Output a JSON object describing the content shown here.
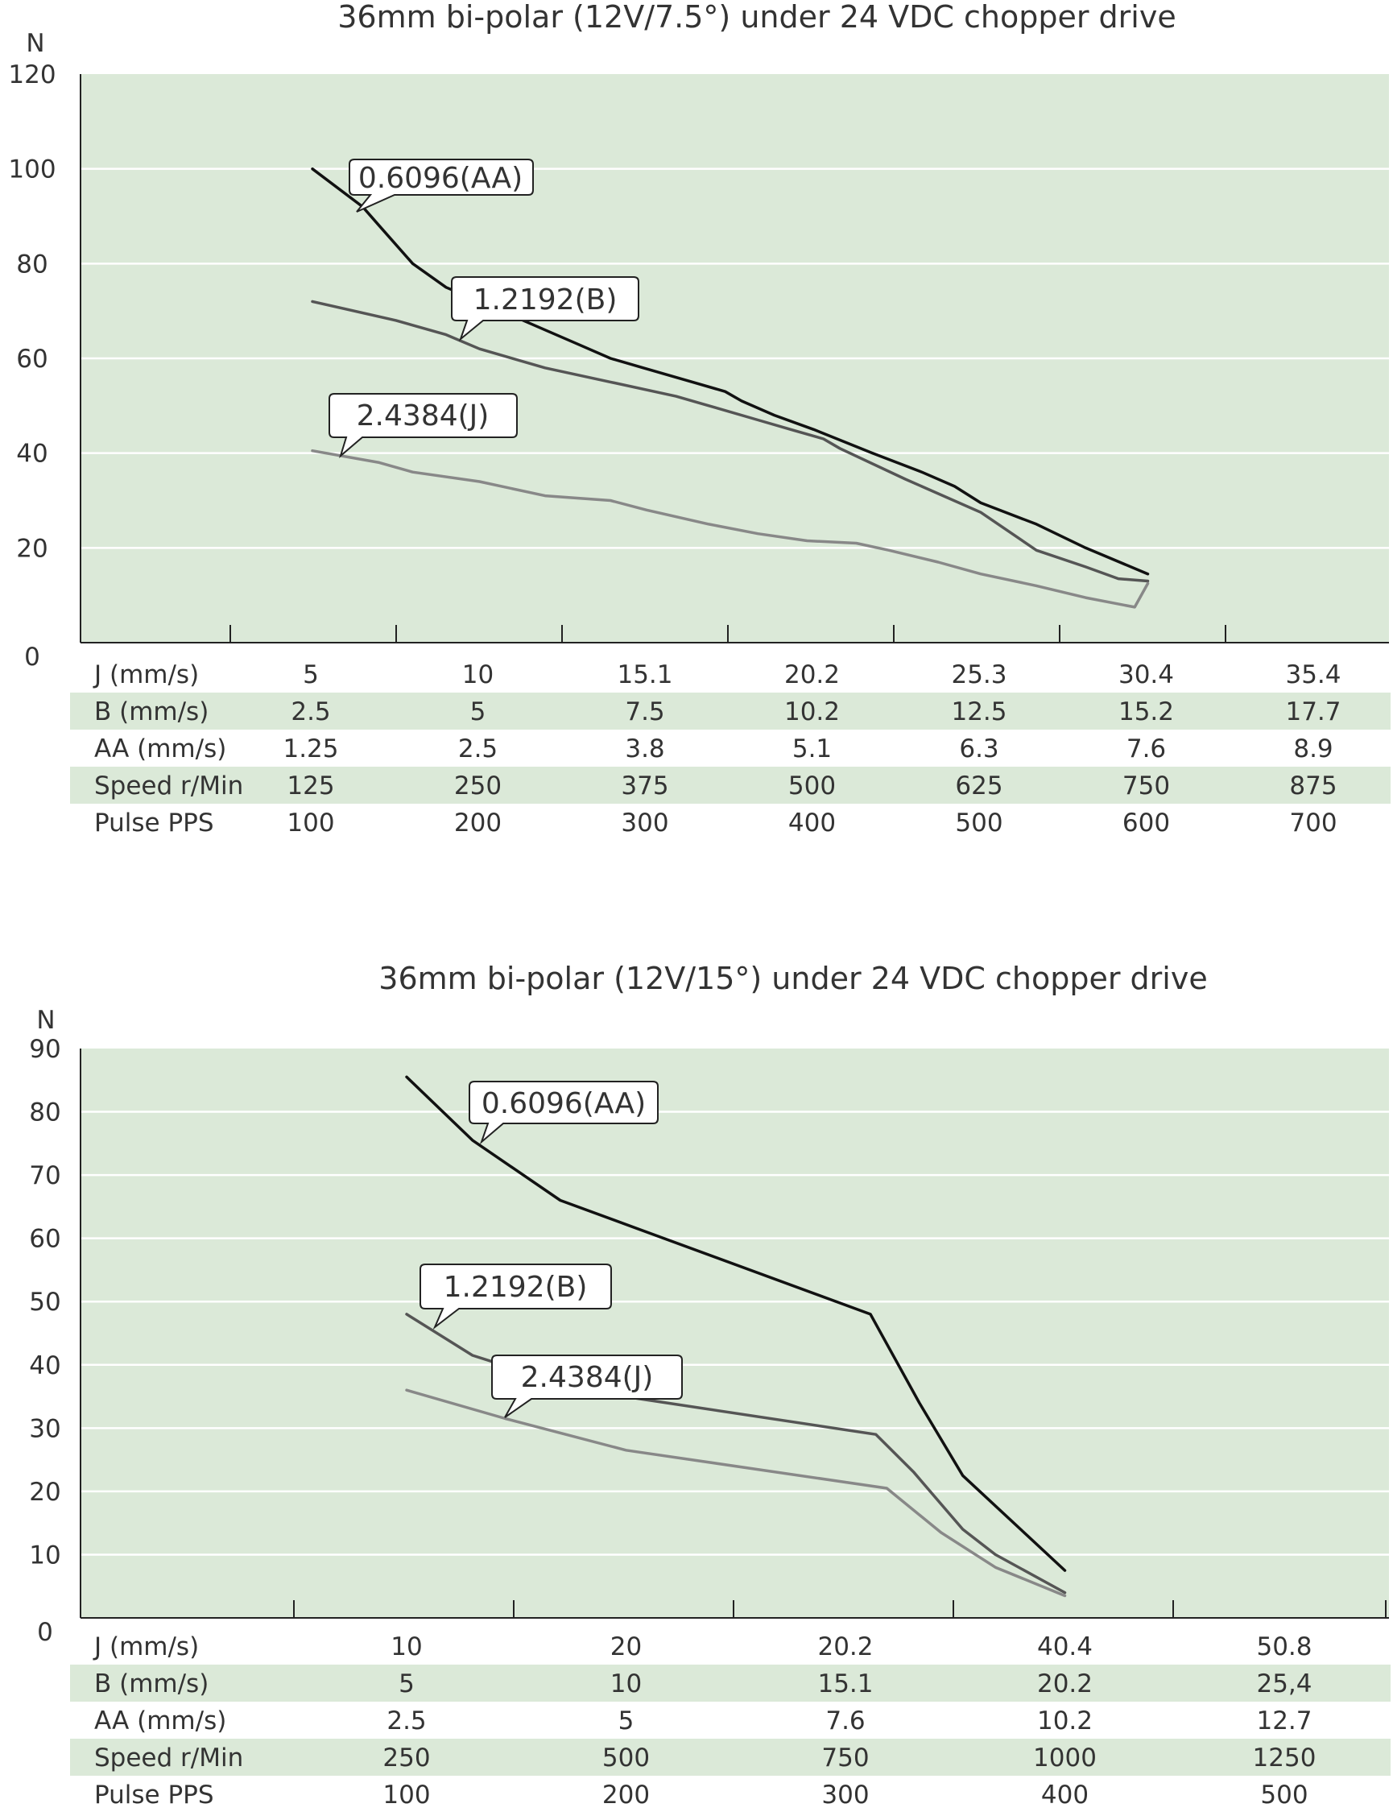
{
  "chart_data": [
    {
      "type": "line",
      "title": "36mm bi-polar (12V/7.5°) under 24 VDC chopper drive",
      "ylabel": "N",
      "ylim": [
        0,
        120
      ],
      "yticks": [
        "0",
        "20",
        "40",
        "60",
        "80",
        "100",
        "120"
      ],
      "grid": true,
      "x": [
        5,
        10,
        15.1,
        20.2,
        25.3,
        30.4,
        35.4
      ],
      "xlim": [
        0,
        35.4
      ],
      "series": [
        {
          "name": "0.6096(AA)",
          "color": "#111111",
          "points": [
            [
              5,
              100
            ],
            [
              6.5,
              92
            ],
            [
              7,
              88
            ],
            [
              8,
              80
            ],
            [
              9,
              75
            ],
            [
              10,
              72
            ],
            [
              12,
              66
            ],
            [
              13,
              63
            ],
            [
              14,
              60
            ],
            [
              15,
              58
            ],
            [
              16.5,
              55
            ],
            [
              17.5,
              53
            ],
            [
              18,
              51
            ],
            [
              19,
              48
            ],
            [
              20.2,
              45
            ],
            [
              22,
              40
            ],
            [
              23.5,
              36
            ],
            [
              24.5,
              33
            ],
            [
              25.3,
              29.5
            ],
            [
              27,
              25
            ],
            [
              28.5,
              20
            ],
            [
              30.4,
              14.5
            ]
          ]
        },
        {
          "name": "1.2192(B)",
          "color": "#555555",
          "points": [
            [
              5,
              72
            ],
            [
              7.5,
              68
            ],
            [
              9,
              65
            ],
            [
              10,
              62
            ],
            [
              12,
              58
            ],
            [
              14,
              55
            ],
            [
              16,
              52
            ],
            [
              17,
              50
            ],
            [
              18.5,
              47
            ],
            [
              19.5,
              45
            ],
            [
              20.5,
              43
            ],
            [
              21,
              41
            ],
            [
              23,
              34.5
            ],
            [
              25.3,
              27.5
            ],
            [
              27,
              19.5
            ],
            [
              28.5,
              16
            ],
            [
              29.5,
              13.5
            ],
            [
              30.4,
              13
            ]
          ]
        },
        {
          "name": "2.4384(J)",
          "color": "#888888",
          "points": [
            [
              5,
              40.5
            ],
            [
              7,
              38
            ],
            [
              8,
              36
            ],
            [
              10,
              34
            ],
            [
              12,
              31
            ],
            [
              14,
              30
            ],
            [
              15.1,
              28
            ],
            [
              17,
              25
            ],
            [
              18.5,
              23
            ],
            [
              20,
              21.5
            ],
            [
              21.5,
              21
            ],
            [
              22.5,
              19.5
            ],
            [
              24,
              17
            ],
            [
              25.3,
              14.5
            ],
            [
              27,
              12
            ],
            [
              28.5,
              9.5
            ],
            [
              30,
              7.5
            ],
            [
              30.4,
              12.5
            ]
          ]
        }
      ],
      "callouts": [
        "0.6096(AA)",
        "1.2192(B)",
        "2.4384(J)"
      ],
      "table": {
        "rows": [
          {
            "label": "J (mm/s)",
            "values": [
              "5",
              "10",
              "15.1",
              "20.2",
              "25.3",
              "30.4",
              "35.4"
            ],
            "shaded": false
          },
          {
            "label": "B (mm/s)",
            "values": [
              "2.5",
              "5",
              "7.5",
              "10.2",
              "12.5",
              "15.2",
              "17.7"
            ],
            "shaded": true
          },
          {
            "label": "AA (mm/s)",
            "values": [
              "1.25",
              "2.5",
              "3.8",
              "5.1",
              "6.3",
              "7.6",
              "8.9"
            ],
            "shaded": false
          },
          {
            "label": "Speed  r/Min",
            "values": [
              "125",
              "250",
              "375",
              "500",
              "625",
              "750",
              "875"
            ],
            "shaded": true
          },
          {
            "label": "Pulse   PPS",
            "values": [
              "100",
              "200",
              "300",
              "400",
              "500",
              "600",
              "700"
            ],
            "shaded": false
          }
        ]
      }
    },
    {
      "type": "line",
      "title": "36mm bi-polar (12V/15°) under 24 VDC chopper drive",
      "ylabel": "N",
      "ylim": [
        0,
        90
      ],
      "yticks": [
        "0",
        "10",
        "20",
        "30",
        "40",
        "50",
        "60",
        "70",
        "80",
        "90"
      ],
      "grid": true,
      "x": [
        10,
        20,
        20.2,
        40.4,
        50.8
      ],
      "series": [
        {
          "name": "0.6096(AA)",
          "color": "#111111",
          "points": [
            [
              10,
              85.5
            ],
            [
              13,
              75.5
            ],
            [
              17,
              66
            ],
            [
              22.5,
              48
            ],
            [
              27,
              34
            ],
            [
              31,
              22.5
            ],
            [
              40.4,
              7.5
            ]
          ]
        },
        {
          "name": "1.2192(B)",
          "color": "#555555",
          "points": [
            [
              10,
              48
            ],
            [
              13,
              41.5
            ],
            [
              18,
              36
            ],
            [
              23,
              29
            ],
            [
              26.5,
              23
            ],
            [
              29,
              18
            ],
            [
              31,
              14
            ],
            [
              34,
              10
            ],
            [
              40.4,
              4
            ]
          ]
        },
        {
          "name": "2.4384(J)",
          "color": "#888888",
          "points": [
            [
              10,
              36
            ],
            [
              14.5,
              31.5
            ],
            [
              20,
              26.5
            ],
            [
              24,
              20.5
            ],
            [
              29,
              13.5
            ],
            [
              34,
              8
            ],
            [
              40.4,
              3.5
            ]
          ]
        }
      ],
      "callouts": [
        "0.6096(AA)",
        "1.2192(B)",
        "2.4384(J)"
      ],
      "table": {
        "rows": [
          {
            "label": "J (mm/s)",
            "values": [
              "10",
              "20",
              "20.2",
              "40.4",
              "50.8"
            ],
            "shaded": false
          },
          {
            "label": "B (mm/s)",
            "values": [
              "5",
              "10",
              "15.1",
              "20.2",
              "25,4"
            ],
            "shaded": true
          },
          {
            "label": "AA (mm/s)",
            "values": [
              "2.5",
              "5",
              "7.6",
              "10.2",
              "12.7"
            ],
            "shaded": false
          },
          {
            "label": "Speed  r/Min",
            "values": [
              "250",
              "500",
              "750",
              "1000",
              "1250"
            ],
            "shaded": true
          },
          {
            "label": "Pulse   PPS",
            "values": [
              "100",
              "200",
              "300",
              "400",
              "500"
            ],
            "shaded": false
          }
        ]
      }
    }
  ],
  "colors": {
    "plot_background": "#dbe9d8",
    "table_row_shade": "#dbe9d8",
    "gridline": "#ffffff",
    "axis": "#222222"
  }
}
